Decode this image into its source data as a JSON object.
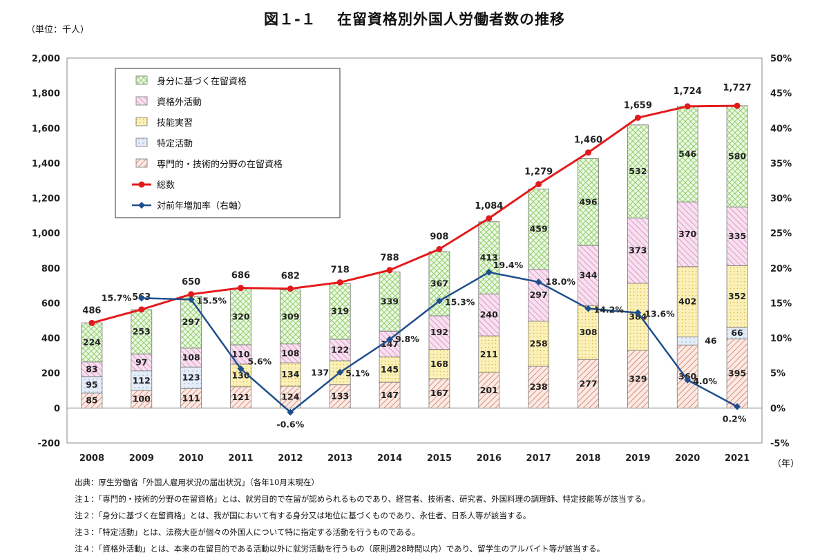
{
  "title": "図１-１　 在留資格別外国人労働者数の推移",
  "unit_label": "（単位：千人）",
  "chart_data": {
    "type": "bar",
    "stacked": true,
    "categories": [
      "2008",
      "2009",
      "2010",
      "2011",
      "2012",
      "2013",
      "2014",
      "2015",
      "2016",
      "2017",
      "2018",
      "2019",
      "2020",
      "2021"
    ],
    "x_unit": "（年）",
    "ylim": [
      -200,
      2000
    ],
    "y_ticks": [
      "-200",
      "0",
      "200",
      "400",
      "600",
      "800",
      "1,000",
      "1,200",
      "1,400",
      "1,600",
      "1,800",
      "2,000"
    ],
    "y2lim": [
      -5,
      50
    ],
    "y2_ticks": [
      "-5%",
      "0%",
      "5%",
      "10%",
      "15%",
      "20%",
      "25%",
      "30%",
      "35%",
      "40%",
      "45%",
      "50%"
    ],
    "series": [
      {
        "name": "専門的・技術的分野の在留資格",
        "color": "#d98c7a",
        "values": [
          85,
          100,
          111,
          121,
          124,
          133,
          147,
          167,
          201,
          238,
          277,
          329,
          360,
          395
        ]
      },
      {
        "name": "特定活動",
        "color": "#9db8d8",
        "values": [
          95,
          112,
          123,
          0,
          0,
          0,
          0,
          0,
          0,
          0,
          0,
          0,
          46,
          66
        ]
      },
      {
        "name": "技能実習",
        "color": "#e8cf5a",
        "values": [
          0,
          0,
          0,
          130,
          134,
          137,
          145,
          168,
          211,
          258,
          308,
          384,
          402,
          352
        ]
      },
      {
        "name": "資格外活動",
        "color": "#d884c0",
        "values": [
          83,
          97,
          108,
          110,
          108,
          122,
          147,
          192,
          240,
          297,
          344,
          373,
          370,
          335
        ]
      },
      {
        "name": "身分に基づく在留資格",
        "color": "#8fcf6a",
        "values": [
          224,
          253,
          297,
          320,
          309,
          319,
          339,
          367,
          413,
          459,
          496,
          532,
          546,
          580
        ]
      }
    ],
    "segment_labels": [
      [
        "85",
        "100",
        "111",
        "121",
        "124",
        "133",
        "147",
        "167",
        "201",
        "238",
        "277",
        "329",
        "360",
        "395"
      ],
      [
        "95",
        "112",
        "123",
        "",
        "",
        "",
        "",
        "",
        "",
        "",
        "",
        "",
        "46",
        "66"
      ],
      [
        "",
        "",
        "",
        "130",
        "134",
        "137",
        "145",
        "168",
        "211",
        "258",
        "308",
        "384",
        "402",
        "352"
      ],
      [
        "83",
        "97",
        "108",
        "110",
        "108",
        "122",
        "147",
        "192",
        "240",
        "297",
        "344",
        "373",
        "370",
        "335"
      ],
      [
        "224",
        "253",
        "297",
        "320",
        "309",
        "319",
        "339",
        "367",
        "413",
        "459",
        "496",
        "532",
        "546",
        "580"
      ]
    ],
    "total": {
      "name": "総数",
      "color": "#e31a1c",
      "values": [
        486,
        563,
        650,
        686,
        682,
        718,
        788,
        908,
        1084,
        1279,
        1460,
        1659,
        1724,
        1727
      ],
      "labels": [
        "486",
        "563",
        "650",
        "686",
        "682",
        "718",
        "788",
        "908",
        "1,084",
        "1,279",
        "1,460",
        "1,659",
        "1,724",
        "1,727"
      ]
    },
    "growth_rate": {
      "name": "対前年増加率（右軸）",
      "color": "#1f4e8c",
      "values": [
        null,
        15.7,
        15.5,
        5.6,
        -0.6,
        5.1,
        9.8,
        15.3,
        19.4,
        18.0,
        14.2,
        13.6,
        4.0,
        0.2
      ],
      "labels": [
        "",
        "15.7%",
        "15.5%",
        "5.6%",
        "-0.6%",
        "5.1%",
        "9.8%",
        "15.3%",
        "19.4%",
        "18.0%",
        "14.2%",
        "13.6%",
        "4.0%",
        "0.2%"
      ]
    },
    "legend": {
      "placement": "top-left",
      "items": [
        "身分に基づく在留資格",
        "資格外活動",
        "技能実習",
        "特定活動",
        "専門的・技術的分野の在留資格",
        "総数",
        "対前年増加率（右軸）"
      ]
    }
  },
  "notes": [
    "出典：厚生労働省「外国人雇用状況の届出状況」（各年10月末現在）",
    "注１：「専門的・技術的分野の在留資格」とは、就労目的で在留が認められるものであり、経営者、技術者、研究者、外国料理の調理師、特定技能等が該当する。",
    "注２：「身分に基づく在留資格」とは、我が国において有する身分又は地位に基づくものであり、永住者、日系人等が該当する。",
    "注３：「特定活動」とは、法務大臣が個々の外国人について特に指定する活動を行うものである。",
    "注４：「資格外活動」とは、本来の在留目的である活動以外に就労活動を行うもの（原則週28時間以内）であり、留学生のアルバイト等が該当する。"
  ]
}
